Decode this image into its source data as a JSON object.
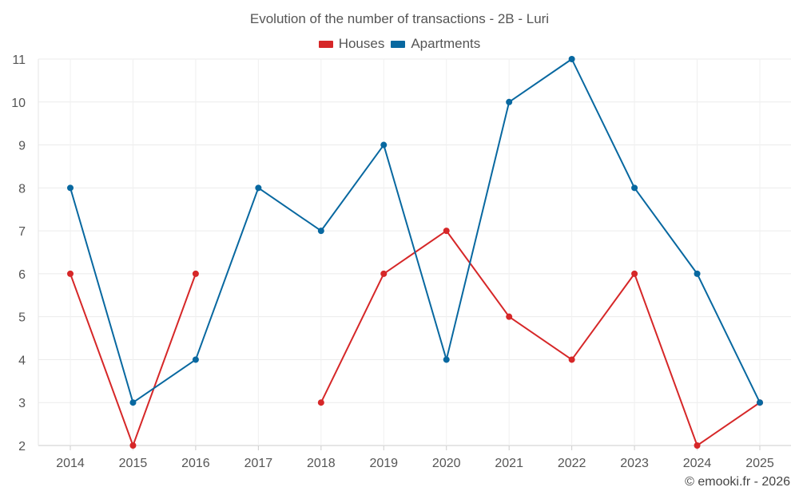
{
  "chart_data": {
    "type": "line",
    "title": "Evolution of the number of transactions - 2B - Luri",
    "x": [
      "2014",
      "2015",
      "2016",
      "2017",
      "2018",
      "2019",
      "2020",
      "2021",
      "2022",
      "2023",
      "2024",
      "2025"
    ],
    "series": [
      {
        "name": "Houses",
        "color": "#d62728",
        "values": [
          6,
          2,
          6,
          null,
          3,
          6,
          7,
          5,
          4,
          6,
          2,
          3
        ]
      },
      {
        "name": "Apartments",
        "color": "#0868a0",
        "values": [
          8,
          3,
          4,
          8,
          7,
          9,
          4,
          10,
          11,
          8,
          6,
          3
        ]
      }
    ],
    "ylim": [
      2,
      11
    ],
    "yticks": [
      2,
      3,
      4,
      5,
      6,
      7,
      8,
      9,
      10,
      11
    ],
    "xlabel": "",
    "ylabel": "",
    "grid": true,
    "legend_position": "top-center"
  },
  "credit": "© emooki.fr - 2026"
}
